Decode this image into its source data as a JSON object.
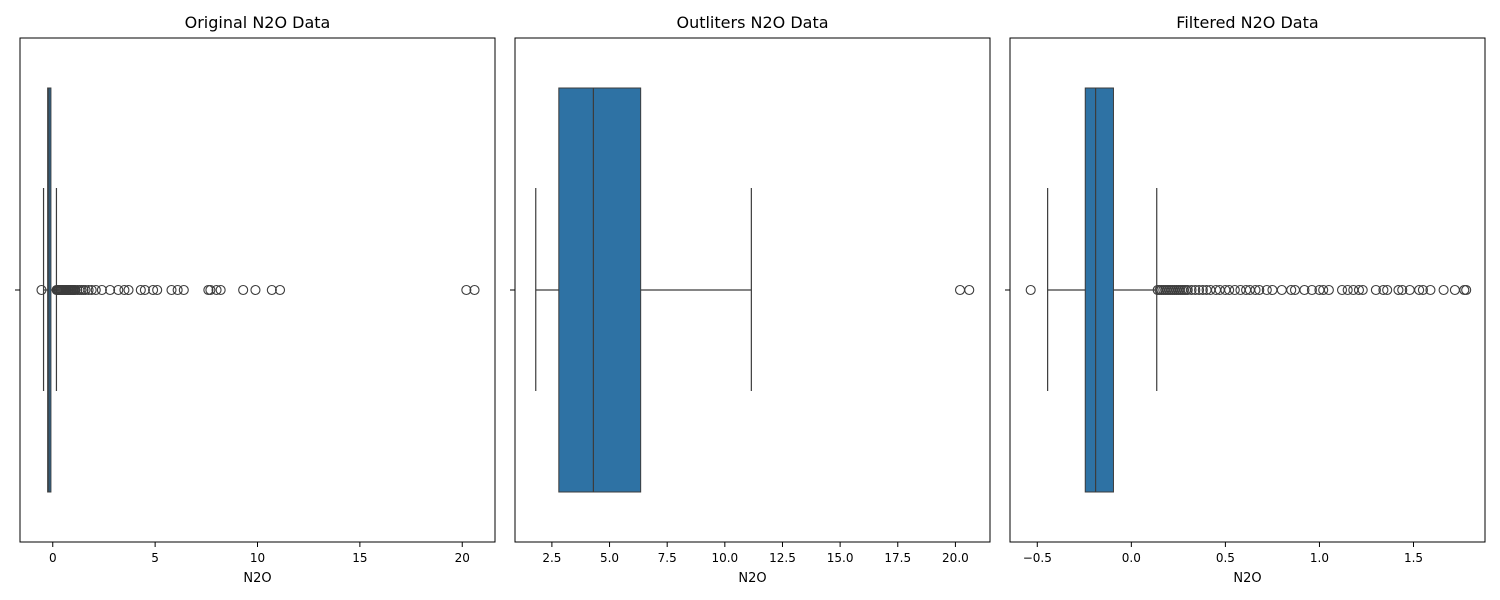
{
  "chart_data": [
    {
      "type": "box",
      "title": "Original N2O Data",
      "xlabel": "N2O",
      "xlim": [
        -1.6,
        21.6
      ],
      "xticks": [
        0,
        5,
        10,
        15,
        20
      ],
      "xtick_labels": [
        "0",
        "5",
        "10",
        "15",
        "20"
      ],
      "box": {
        "whisker_low": -0.45,
        "q1": -0.25,
        "median": -0.19,
        "q3": -0.09,
        "whisker_high": 0.18
      },
      "outliers": [
        -0.55,
        0.19,
        0.22,
        0.26,
        0.3,
        0.35,
        0.4,
        0.45,
        0.5,
        0.55,
        0.6,
        0.65,
        0.7,
        0.75,
        0.8,
        0.85,
        0.9,
        0.95,
        1.0,
        1.05,
        1.1,
        1.2,
        1.3,
        1.4,
        1.5,
        1.6,
        1.75,
        1.9,
        2.1,
        2.4,
        2.8,
        3.2,
        3.5,
        3.7,
        4.3,
        4.5,
        4.9,
        5.1,
        5.8,
        6.1,
        6.4,
        7.6,
        7.7,
        8.0,
        8.2,
        9.3,
        9.9,
        10.7,
        11.1,
        20.2,
        20.6
      ]
    },
    {
      "type": "box",
      "title": "Outliters N2O Data",
      "xlabel": "N2O",
      "xlim": [
        0.9,
        21.5
      ],
      "xticks": [
        2.5,
        5.0,
        7.5,
        10.0,
        12.5,
        15.0,
        17.5,
        20.0
      ],
      "xtick_labels": [
        "2.5",
        "5.0",
        "7.5",
        "10.0",
        "12.5",
        "15.0",
        "17.5",
        "20.0"
      ],
      "box": {
        "whisker_low": 1.8,
        "q1": 2.8,
        "median": 4.3,
        "q3": 6.35,
        "whisker_high": 11.15
      },
      "outliers": [
        20.2,
        20.6
      ]
    },
    {
      "type": "box",
      "title": "Filtered N2O Data",
      "xlabel": "N2O",
      "xlim": [
        -0.645,
        1.88
      ],
      "xticks": [
        -0.5,
        0.0,
        0.5,
        1.0,
        1.5
      ],
      "xtick_labels": [
        "−0.5",
        "0.0",
        "0.5",
        "1.0",
        "1.5"
      ],
      "box": {
        "whisker_low": -0.445,
        "q1": -0.245,
        "median": -0.19,
        "q3": -0.095,
        "whisker_high": 0.135
      },
      "outliers": [
        -0.535,
        0.14,
        0.15,
        0.16,
        0.17,
        0.18,
        0.19,
        0.2,
        0.21,
        0.22,
        0.23,
        0.24,
        0.25,
        0.26,
        0.27,
        0.28,
        0.29,
        0.3,
        0.32,
        0.34,
        0.36,
        0.38,
        0.4,
        0.42,
        0.45,
        0.47,
        0.5,
        0.52,
        0.55,
        0.58,
        0.61,
        0.63,
        0.66,
        0.68,
        0.72,
        0.75,
        0.8,
        0.85,
        0.87,
        0.92,
        0.96,
        1.0,
        1.02,
        1.05,
        1.12,
        1.15,
        1.18,
        1.21,
        1.23,
        1.3,
        1.34,
        1.36,
        1.42,
        1.44,
        1.48,
        1.53,
        1.55,
        1.59,
        1.66,
        1.72,
        1.77,
        1.78
      ]
    }
  ],
  "colors": {
    "box_fill": "#2e72a4",
    "line": "#3c3c3c",
    "axis": "#000000"
  }
}
